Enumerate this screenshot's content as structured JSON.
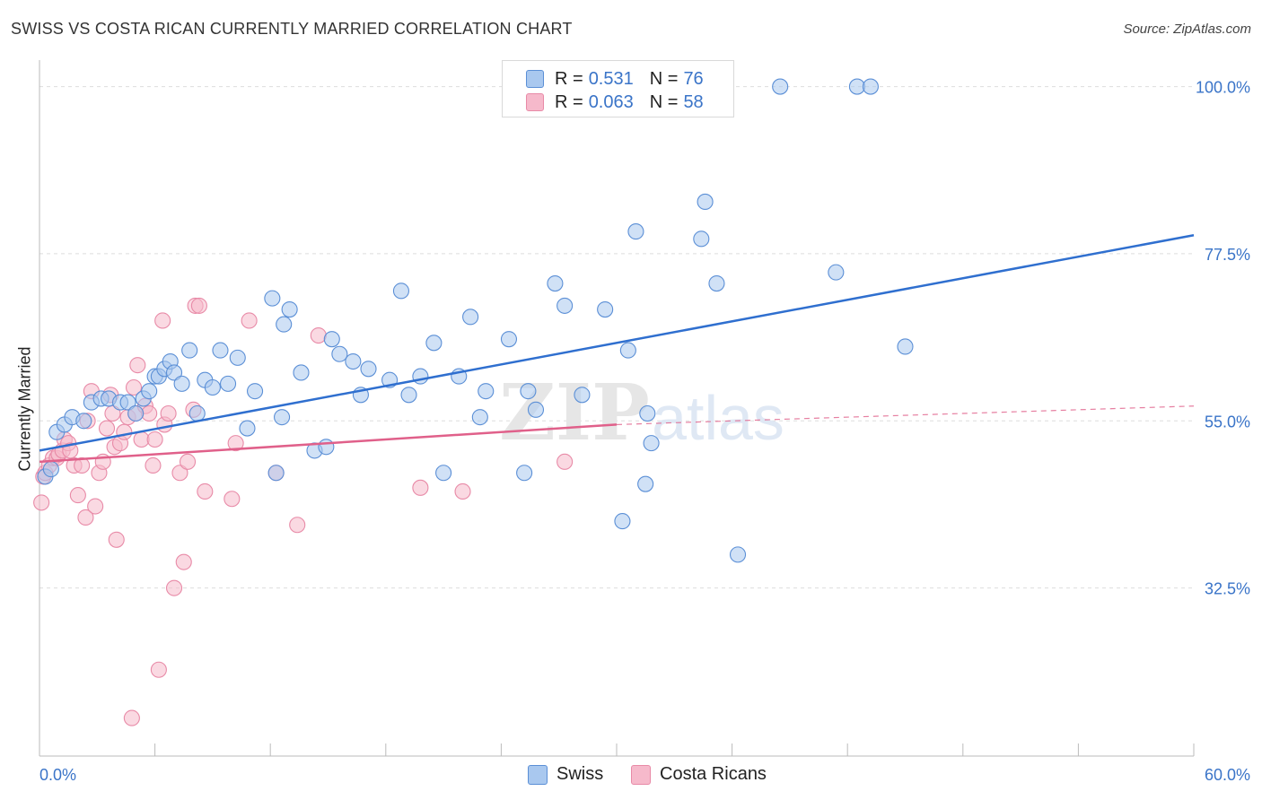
{
  "title": "SWISS VS COSTA RICAN CURRENTLY MARRIED CORRELATION CHART",
  "source": "Source: ZipAtlas.com",
  "watermark": {
    "zip": "ZIP",
    "atlas": "atlas"
  },
  "legend": {
    "swiss": {
      "r_label": "R =",
      "r_value": "0.531",
      "n_label": "N =",
      "n_value": "76"
    },
    "costa": {
      "r_label": "R =",
      "r_value": "0.063",
      "n_label": "N =",
      "n_value": "58"
    }
  },
  "colors": {
    "swiss_fill": "#a9c8ef",
    "swiss_stroke": "#5b8fd6",
    "swiss_line": "#2f6fcf",
    "costa_fill": "#f6b9cb",
    "costa_stroke": "#e88aa7",
    "costa_line": "#e0608a",
    "tick_label": "#3a74c8",
    "grid": "#dddddd"
  },
  "chart_data": {
    "type": "scatter",
    "title": "SWISS VS COSTA RICAN CURRENTLY MARRIED CORRELATION CHART",
    "xlabel": "",
    "ylabel": "Currently Married",
    "xlim": [
      0,
      60
    ],
    "ylim": [
      10,
      102
    ],
    "x_tick_labels": [
      "0.0%",
      "60.0%"
    ],
    "y_ticks": [
      32.5,
      55.0,
      77.5,
      100.0
    ],
    "y_tick_labels": [
      "32.5%",
      "55.0%",
      "77.5%",
      "100.0%"
    ],
    "grid": true,
    "legend_position": "top-center",
    "series": [
      {
        "name": "Swiss",
        "points": [
          [
            0.3,
            47.5
          ],
          [
            0.6,
            48.5
          ],
          [
            0.9,
            53.5
          ],
          [
            1.3,
            54.5
          ],
          [
            1.7,
            55.5
          ],
          [
            2.3,
            55.0
          ],
          [
            2.7,
            57.5
          ],
          [
            3.2,
            58.0
          ],
          [
            3.6,
            58.0
          ],
          [
            4.2,
            57.5
          ],
          [
            4.6,
            57.5
          ],
          [
            5.0,
            56.0
          ],
          [
            5.4,
            58.0
          ],
          [
            5.7,
            59.0
          ],
          [
            6.0,
            61.0
          ],
          [
            6.2,
            61.0
          ],
          [
            6.5,
            62.0
          ],
          [
            6.8,
            63.0
          ],
          [
            7.0,
            61.5
          ],
          [
            7.4,
            60.0
          ],
          [
            7.8,
            64.5
          ],
          [
            8.2,
            56.0
          ],
          [
            8.6,
            60.5
          ],
          [
            9.0,
            59.5
          ],
          [
            9.4,
            64.5
          ],
          [
            9.8,
            60.0
          ],
          [
            10.3,
            63.5
          ],
          [
            10.8,
            54.0
          ],
          [
            11.2,
            59.0
          ],
          [
            12.1,
            71.5
          ],
          [
            12.6,
            55.5
          ],
          [
            12.3,
            48.0
          ],
          [
            12.7,
            68.0
          ],
          [
            13.0,
            70.0
          ],
          [
            13.6,
            61.5
          ],
          [
            14.3,
            51.0
          ],
          [
            14.9,
            51.5
          ],
          [
            15.2,
            66.0
          ],
          [
            15.6,
            64.0
          ],
          [
            16.3,
            63.0
          ],
          [
            16.7,
            58.5
          ],
          [
            17.1,
            62.0
          ],
          [
            18.2,
            60.5
          ],
          [
            18.8,
            72.5
          ],
          [
            19.2,
            58.5
          ],
          [
            19.8,
            61.0
          ],
          [
            20.5,
            65.5
          ],
          [
            21.0,
            48.0
          ],
          [
            21.8,
            61.0
          ],
          [
            22.9,
            55.5
          ],
          [
            22.4,
            69.0
          ],
          [
            23.2,
            59.0
          ],
          [
            24.4,
            66.0
          ],
          [
            25.2,
            48.0
          ],
          [
            25.4,
            59.0
          ],
          [
            25.8,
            56.5
          ],
          [
            26.8,
            73.5
          ],
          [
            27.3,
            70.5
          ],
          [
            27.9,
            100.0
          ],
          [
            28.2,
            58.5
          ],
          [
            29.4,
            70.0
          ],
          [
            30.3,
            41.5
          ],
          [
            30.6,
            64.5
          ],
          [
            31.0,
            80.5
          ],
          [
            31.5,
            46.5
          ],
          [
            31.8,
            52.0
          ],
          [
            31.6,
            56.0
          ],
          [
            34.4,
            79.5
          ],
          [
            34.6,
            84.5
          ],
          [
            35.2,
            73.5
          ],
          [
            36.3,
            37.0
          ],
          [
            38.5,
            100.0
          ],
          [
            41.4,
            75.0
          ],
          [
            42.5,
            100.0
          ],
          [
            43.2,
            100.0
          ],
          [
            45.0,
            65.0
          ]
        ]
      },
      {
        "name": "Costa Ricans",
        "points": [
          [
            0.1,
            44.0
          ],
          [
            0.2,
            47.5
          ],
          [
            0.3,
            48.0
          ],
          [
            0.5,
            49.0
          ],
          [
            0.7,
            50.0
          ],
          [
            0.9,
            50.0
          ],
          [
            1.0,
            50.5
          ],
          [
            1.2,
            51.0
          ],
          [
            1.3,
            52.5
          ],
          [
            1.5,
            52.0
          ],
          [
            1.6,
            51.0
          ],
          [
            1.8,
            49.0
          ],
          [
            2.0,
            45.0
          ],
          [
            2.2,
            49.0
          ],
          [
            2.4,
            42.0
          ],
          [
            2.5,
            55.0
          ],
          [
            2.7,
            59.0
          ],
          [
            2.9,
            43.5
          ],
          [
            3.1,
            48.0
          ],
          [
            3.3,
            49.5
          ],
          [
            3.5,
            54.0
          ],
          [
            3.7,
            58.5
          ],
          [
            3.8,
            56.0
          ],
          [
            3.9,
            51.5
          ],
          [
            4.0,
            39.0
          ],
          [
            4.2,
            52.0
          ],
          [
            4.4,
            53.5
          ],
          [
            4.6,
            55.5
          ],
          [
            4.8,
            15.0
          ],
          [
            4.9,
            59.5
          ],
          [
            5.0,
            56.0
          ],
          [
            5.1,
            62.5
          ],
          [
            5.3,
            52.5
          ],
          [
            5.5,
            57.0
          ],
          [
            5.7,
            56.0
          ],
          [
            6.0,
            52.5
          ],
          [
            5.9,
            49.0
          ],
          [
            6.2,
            21.5
          ],
          [
            6.4,
            68.5
          ],
          [
            6.5,
            54.5
          ],
          [
            6.7,
            56.0
          ],
          [
            7.0,
            32.5
          ],
          [
            7.3,
            48.0
          ],
          [
            7.5,
            36.0
          ],
          [
            7.7,
            49.5
          ],
          [
            8.0,
            56.5
          ],
          [
            8.1,
            70.5
          ],
          [
            8.3,
            70.5
          ],
          [
            8.6,
            45.5
          ],
          [
            10.0,
            44.5
          ],
          [
            10.2,
            52.0
          ],
          [
            10.9,
            68.5
          ],
          [
            12.3,
            48.0
          ],
          [
            13.4,
            41.0
          ],
          [
            14.5,
            66.5
          ],
          [
            19.8,
            46.0
          ],
          [
            22.0,
            45.5
          ],
          [
            27.3,
            49.5
          ]
        ]
      }
    ],
    "trend_lines": [
      {
        "name": "Swiss",
        "from": [
          0,
          51.0
        ],
        "to": [
          60,
          80.0
        ]
      },
      {
        "name": "Costa Ricans",
        "solid_from": [
          0,
          49.5
        ],
        "solid_to": [
          30,
          54.5
        ],
        "dashed_to": [
          60,
          57.0
        ]
      }
    ]
  },
  "bottom_legend": {
    "swiss": "Swiss",
    "costa": "Costa Ricans"
  }
}
